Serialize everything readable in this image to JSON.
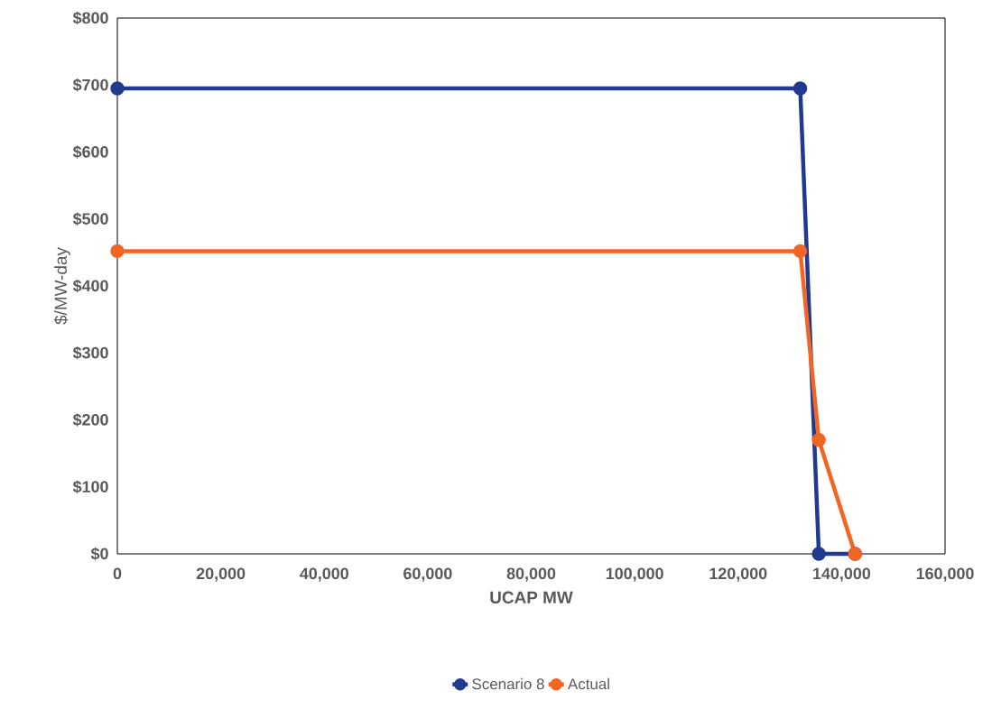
{
  "chart_data": {
    "type": "line",
    "xlabel": "UCAP MW",
    "ylabel": "$/MW-day",
    "series": [
      {
        "name": "Scenario 8",
        "color": "#1f3a8f",
        "x": [
          0,
          132000,
          135600,
          142600
        ],
        "values": [
          695,
          695,
          0,
          0
        ]
      },
      {
        "name": "Actual",
        "color": "#f26522",
        "x": [
          0,
          132000,
          135600,
          142600
        ],
        "values": [
          452,
          452,
          170,
          0
        ]
      }
    ],
    "xlim": [
      0,
      160000
    ],
    "ylim": [
      0,
      800
    ],
    "xticks": [
      0,
      {
        "value": 20000,
        "label": "20,000"
      },
      {
        "value": 40000,
        "label": "40,000"
      },
      {
        "value": 60000,
        "label": "60,000"
      },
      {
        "value": 80000,
        "label": "80,000"
      },
      {
        "value": 100000,
        "label": "100,000"
      },
      {
        "value": 120000,
        "label": "120,000"
      },
      {
        "value": 140000,
        "label": "140,000"
      },
      {
        "value": 160000,
        "label": "160,000"
      }
    ],
    "yticks": [
      {
        "value": 0,
        "label": "$0"
      },
      {
        "value": 100,
        "label": "$100"
      },
      {
        "value": 200,
        "label": "$200"
      },
      {
        "value": 300,
        "label": "$300"
      },
      {
        "value": 400,
        "label": "$400"
      },
      {
        "value": 500,
        "label": "$500"
      },
      {
        "value": 600,
        "label": "$600"
      },
      {
        "value": 700,
        "label": "$700"
      },
      {
        "value": 800,
        "label": "$800"
      }
    ],
    "grid": false,
    "legend": "bottom",
    "marker": "circle",
    "line_style": "solid"
  }
}
